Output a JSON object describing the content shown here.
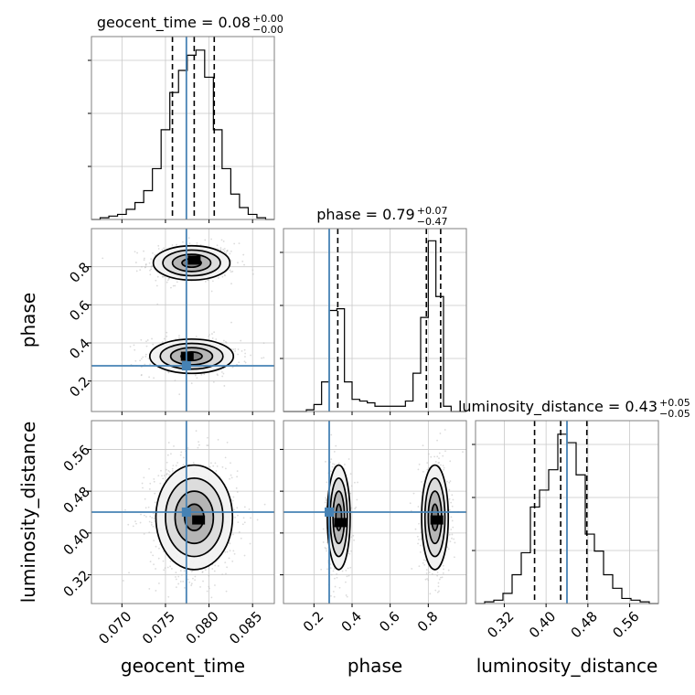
{
  "chart_data": {
    "type": "corner",
    "parameters": [
      "geocent_time",
      "phase",
      "luminosity_distance"
    ],
    "colors": {
      "truth": "#4682b4",
      "hist": "#000000",
      "points": "#bdbdbd",
      "contour": "#000000"
    },
    "truth": {
      "geocent_time": 0.0774,
      "phase": 0.28,
      "luminosity_distance": 0.44
    },
    "axes": {
      "geocent_time": {
        "range": [
          0.0665,
          0.0875
        ],
        "ticks": [
          0.07,
          0.075,
          0.08,
          0.085
        ],
        "tick_labels": [
          "0.070",
          "0.075",
          "0.080",
          "0.085"
        ],
        "label": "geocent_time"
      },
      "phase": {
        "range": [
          0.04,
          1.0
        ],
        "ticks": [
          0.2,
          0.4,
          0.6,
          0.8
        ],
        "tick_labels": [
          "0.2",
          "0.4",
          "0.6",
          "0.8"
        ],
        "label": "phase"
      },
      "luminosity_distance": {
        "range": [
          0.265,
          0.615
        ],
        "ticks": [
          0.32,
          0.4,
          0.48,
          0.56
        ],
        "tick_labels": [
          "0.32",
          "0.40",
          "0.48",
          "0.56"
        ],
        "label": "luminosity_distance"
      }
    },
    "marginals": [
      {
        "param": "geocent_time",
        "title_name": "geocent_time = 0.08",
        "title_sup": "+0.00",
        "title_sub": "−0.00",
        "quantiles": [
          0.0758,
          0.0783,
          0.0806
        ],
        "bin_edges": [
          0.0665,
          0.0675,
          0.0685,
          0.0695,
          0.0705,
          0.0715,
          0.0725,
          0.0735,
          0.0745,
          0.0755,
          0.0765,
          0.0775,
          0.0785,
          0.0795,
          0.0805,
          0.0815,
          0.0825,
          0.0835,
          0.0845,
          0.0855,
          0.0865,
          0.0875
        ],
        "counts": [
          0.0,
          0.01,
          0.02,
          0.03,
          0.06,
          0.1,
          0.17,
          0.3,
          0.53,
          0.75,
          0.88,
          0.97,
          1.0,
          0.84,
          0.53,
          0.3,
          0.15,
          0.07,
          0.03,
          0.01,
          0.0
        ],
        "ymax": 1.08
      },
      {
        "param": "phase",
        "title_name": "phase = 0.79",
        "title_sup": "+0.07",
        "title_sub": "−0.47",
        "quantiles": [
          0.325,
          0.79,
          0.865
        ],
        "bin_edges": [
          0.04,
          0.08,
          0.12,
          0.16,
          0.2,
          0.24,
          0.28,
          0.32,
          0.36,
          0.4,
          0.44,
          0.48,
          0.52,
          0.56,
          0.6,
          0.64,
          0.68,
          0.72,
          0.76,
          0.8,
          0.84,
          0.88,
          0.92,
          0.96,
          1.0
        ],
        "counts": [
          0.0,
          0.0,
          0.0,
          0.01,
          0.04,
          0.17,
          0.58,
          0.59,
          0.17,
          0.07,
          0.06,
          0.05,
          0.03,
          0.03,
          0.03,
          0.03,
          0.06,
          0.22,
          0.54,
          0.98,
          0.66,
          0.03,
          0.0,
          0.0
        ],
        "ymax": 1.05
      },
      {
        "param": "luminosity_distance",
        "title_name": "luminosity_distance = 0.43",
        "title_sup": "+0.05",
        "title_sub": "−0.05",
        "quantiles": [
          0.378,
          0.428,
          0.478
        ],
        "bin_edges": [
          0.265,
          0.2825,
          0.3,
          0.3175,
          0.335,
          0.3525,
          0.37,
          0.3875,
          0.405,
          0.4225,
          0.44,
          0.4575,
          0.475,
          0.4925,
          0.51,
          0.5275,
          0.545,
          0.5625,
          0.58,
          0.5975,
          0.615
        ],
        "counts": [
          0.0,
          0.01,
          0.02,
          0.06,
          0.17,
          0.3,
          0.57,
          0.67,
          0.79,
          1.0,
          0.95,
          0.76,
          0.41,
          0.31,
          0.17,
          0.09,
          0.03,
          0.02,
          0.01,
          0.0
        ],
        "ymax": 1.08
      }
    ],
    "joints": [
      {
        "x": "geocent_time",
        "y": "phase",
        "clusters": [
          {
            "cx": 0.078,
            "cy": 0.82,
            "sx": 0.0022,
            "sy": 0.045,
            "w": 0.55
          },
          {
            "cx": 0.078,
            "cy": 0.33,
            "sx": 0.0024,
            "sy": 0.045,
            "w": 0.45
          }
        ],
        "peaks": [
          [
            0.0783,
            0.835
          ],
          [
            0.0775,
            0.33
          ]
        ]
      },
      {
        "x": "geocent_time",
        "y": "luminosity_distance",
        "clusters": [
          {
            "cx": 0.0783,
            "cy": 0.43,
            "sx": 0.0022,
            "sy": 0.05,
            "w": 1.0
          }
        ],
        "peaks": [
          [
            0.0788,
            0.425
          ]
        ]
      },
      {
        "x": "phase",
        "y": "luminosity_distance",
        "clusters": [
          {
            "cx": 0.33,
            "cy": 0.43,
            "sx": 0.03,
            "sy": 0.05,
            "w": 0.45
          },
          {
            "cx": 0.835,
            "cy": 0.43,
            "sx": 0.035,
            "sy": 0.05,
            "w": 0.55
          }
        ],
        "peaks": [
          [
            0.34,
            0.42
          ],
          [
            0.845,
            0.425
          ]
        ]
      }
    ],
    "grid": true
  }
}
